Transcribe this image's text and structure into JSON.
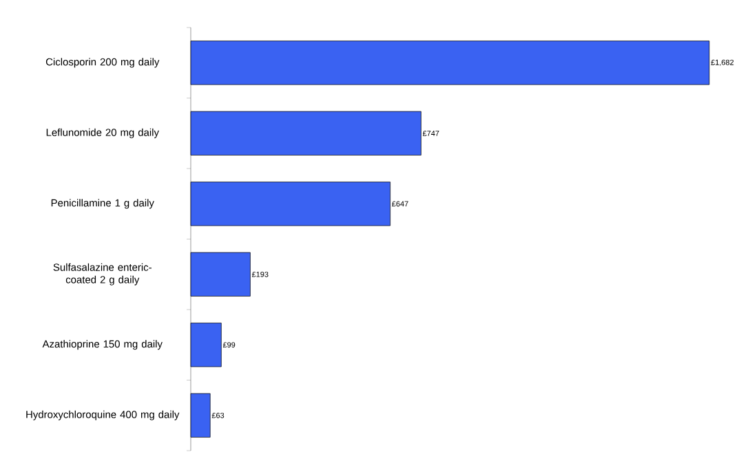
{
  "chart_data": {
    "type": "bar",
    "orientation": "horizontal",
    "categories": [
      "Ciclosporin 200 mg daily",
      "Leflunomide 20 mg daily",
      "Penicillamine 1 g daily",
      "Sulfasalazine enteric-coated 2 g daily",
      "Azathioprine 150 mg daily",
      "Hydroxychloroquine 400 mg   daily"
    ],
    "values": [
      1682,
      747,
      647,
      193,
      99,
      63
    ],
    "value_labels": [
      "£1,682",
      "£747",
      "£647",
      "£193",
      "£99",
      "£63"
    ],
    "color": "#3a62f2"
  }
}
